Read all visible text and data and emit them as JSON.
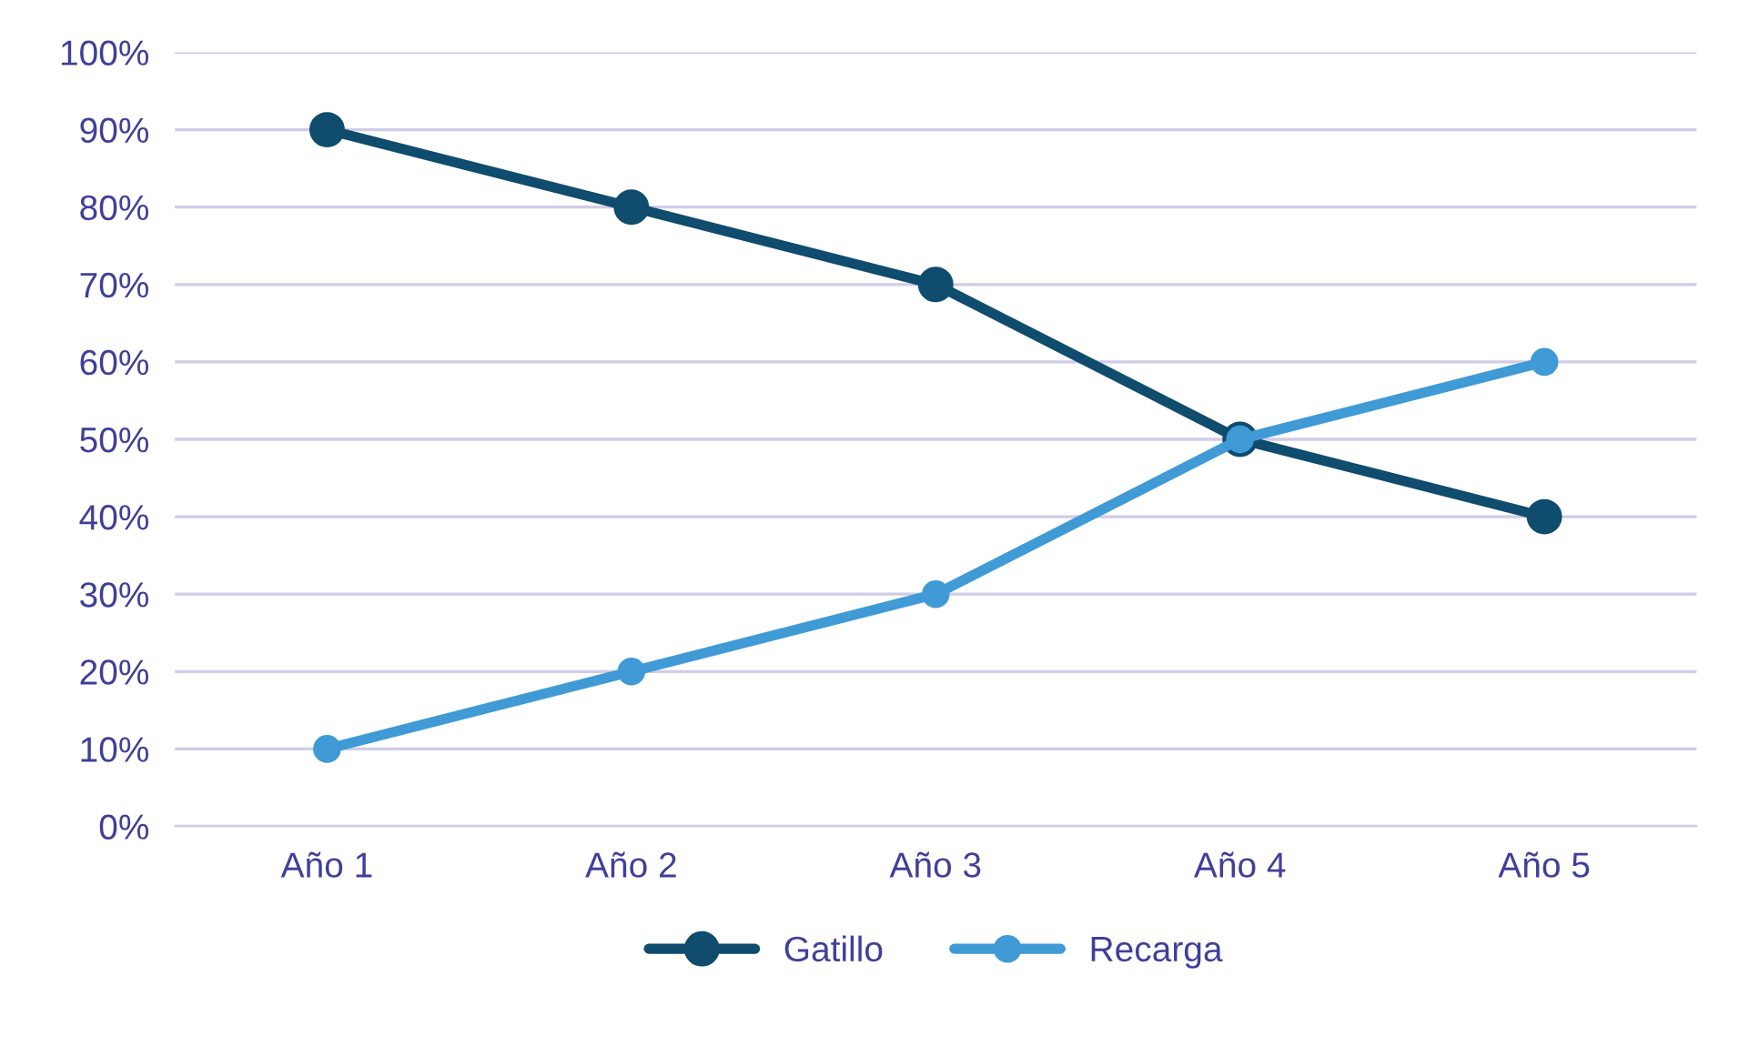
{
  "chart_data": {
    "type": "line",
    "categories": [
      "Año 1",
      "Año 2",
      "Año 3",
      "Año 4",
      "Año 5"
    ],
    "series": [
      {
        "name": "Gatillo",
        "color": "#0f4c6e",
        "values": [
          90,
          80,
          70,
          50,
          40
        ]
      },
      {
        "name": "Recarga",
        "color": "#3f9ad6",
        "values": [
          10,
          20,
          30,
          50,
          60
        ]
      }
    ],
    "ylim": [
      0,
      100
    ],
    "yticks": [
      {
        "value": 0,
        "label": "0%"
      },
      {
        "value": 10,
        "label": "10%"
      },
      {
        "value": 20,
        "label": "20%"
      },
      {
        "value": 30,
        "label": "30%"
      },
      {
        "value": 40,
        "label": "40%"
      },
      {
        "value": 50,
        "label": "50%"
      },
      {
        "value": 60,
        "label": "60%"
      },
      {
        "value": 70,
        "label": "70%"
      },
      {
        "value": 80,
        "label": "80%"
      },
      {
        "value": 90,
        "label": "90%"
      },
      {
        "value": 100,
        "label": "100%"
      }
    ],
    "grid": "y",
    "legend": "bottom",
    "marker": "circle",
    "line_style": "solid"
  }
}
